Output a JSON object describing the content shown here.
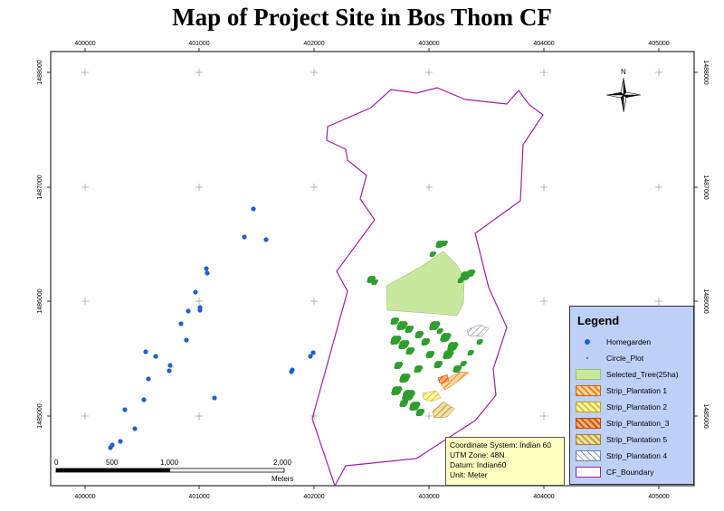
{
  "title": "Map of Project Site in Bos Thom CF",
  "grid": {
    "x_ticks": [
      "400000",
      "401000",
      "402000",
      "403000",
      "404000",
      "405000"
    ],
    "y_ticks": [
      "1488000",
      "1487000",
      "1486000",
      "1485000"
    ]
  },
  "north_arrow": {
    "label": "N"
  },
  "legend": {
    "title": "Legend",
    "items": [
      {
        "label": "Homegarden",
        "symbol": "blue-dot"
      },
      {
        "label": "Circle_Plot",
        "symbol": "small-dot"
      },
      {
        "label": "Selected_Tree(25ha)",
        "symbol": "green-fill"
      },
      {
        "label": "Strip_Plantation 1",
        "symbol": "orange-hatch"
      },
      {
        "label": "Strip_Plantation 2",
        "symbol": "yellow-hatch"
      },
      {
        "label": "Strip_Plantation_3",
        "symbol": "dark-orange-hatch"
      },
      {
        "label": "Strip_Plantation 5",
        "symbol": "tan-hatch"
      },
      {
        "label": "Strip_Plantation 4",
        "symbol": "grey-hatch"
      },
      {
        "label": "CF_Boundary",
        "symbol": "magenta-outline"
      }
    ]
  },
  "info": {
    "line1": "Coordinate System: Indian 60",
    "line2": "UTM Zone: 48N",
    "line3": "Datum: Indian60",
    "line4": "Unit: Meter"
  },
  "scale_bar": {
    "labels": [
      "0",
      "500",
      "1,000",
      "2,000"
    ],
    "unit": "Meters"
  },
  "colors": {
    "boundary": "#a020a0",
    "homegarden": "#1f5fd0",
    "selected_tree": "#c8e8a0",
    "tree_cluster": "#2e9e2e",
    "legend_bg": "#bdd0f8",
    "info_bg": "#ffffc0"
  }
}
